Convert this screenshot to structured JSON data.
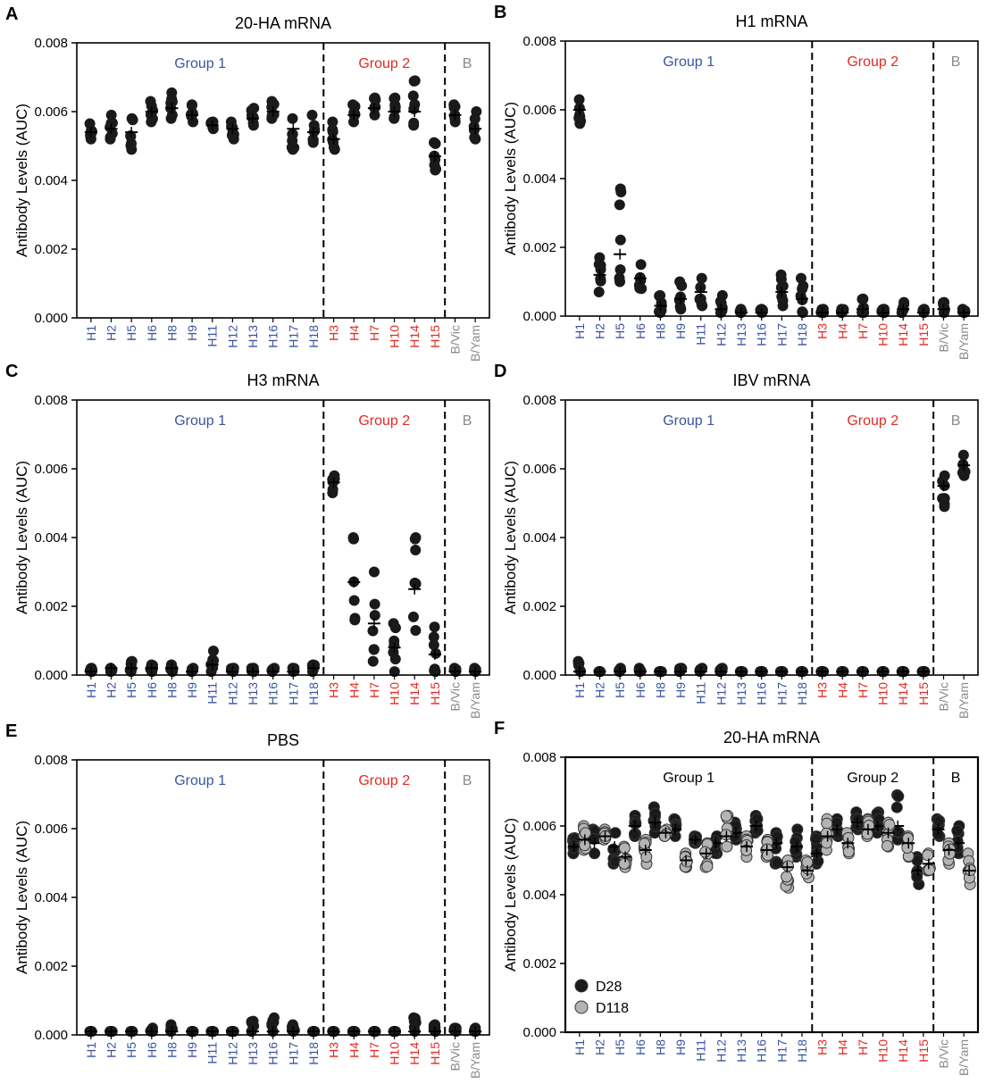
{
  "colors": {
    "group1": "#3a55a0",
    "group2": "#e32a22",
    "groupB": "#8a8a8a",
    "dot": "#1a1a1a",
    "dot_d118": "#b4b4b4",
    "axis": "#000000"
  },
  "chart_data": [
    {
      "panel": "A",
      "type": "scatter",
      "title": "20-HA mRNA",
      "ylabel": "Antibody Levels (AUC)",
      "ylim": [
        0,
        0.008
      ],
      "yticks": [
        "0.000",
        "0.002",
        "0.004",
        "0.006",
        "0.008"
      ],
      "categories": [
        "H1",
        "H2",
        "H5",
        "H6",
        "H8",
        "H9",
        "H11",
        "H12",
        "H13",
        "H16",
        "H17",
        "H18",
        "H3",
        "H4",
        "H7",
        "H10",
        "H14",
        "H15",
        "B/Vic",
        "B/Yam"
      ],
      "category_groups": [
        "g1",
        "g1",
        "g1",
        "g1",
        "g1",
        "g1",
        "g1",
        "g1",
        "g1",
        "g1",
        "g1",
        "g1",
        "g2",
        "g2",
        "g2",
        "g2",
        "g2",
        "g2",
        "b",
        "b"
      ],
      "group_labels": [
        "Group 1",
        "Group 2",
        "B"
      ],
      "legend": [],
      "series": [
        {
          "means": [
            0.0054,
            0.0055,
            0.0054,
            0.006,
            0.0061,
            0.0059,
            0.0056,
            0.0055,
            0.0058,
            0.006,
            0.0055,
            0.0054,
            0.0052,
            0.0059,
            0.0061,
            0.006,
            0.006,
            0.0047,
            0.0059,
            0.0055
          ],
          "max": [
            0.00565,
            0.0059,
            0.0058,
            0.0063,
            0.00655,
            0.0062,
            0.0057,
            0.0057,
            0.0061,
            0.0063,
            0.0058,
            0.0059,
            0.0057,
            0.0062,
            0.0064,
            0.0064,
            0.0069,
            0.0051,
            0.0062,
            0.006
          ],
          "min": [
            0.0052,
            0.0052,
            0.0049,
            0.0057,
            0.0058,
            0.0057,
            0.0055,
            0.0052,
            0.0056,
            0.0058,
            0.0049,
            0.0051,
            0.0049,
            0.0057,
            0.0059,
            0.0058,
            0.0056,
            0.0043,
            0.0057,
            0.0052
          ]
        }
      ]
    },
    {
      "panel": "B",
      "type": "scatter",
      "title": "H1 mRNA",
      "ylabel": "Antibody Levels (AUC)",
      "ylim": [
        0,
        0.008
      ],
      "yticks": [
        "0.000",
        "0.002",
        "0.004",
        "0.006",
        "0.008"
      ],
      "categories": [
        "H1",
        "H2",
        "H5",
        "H6",
        "H8",
        "H9",
        "H11",
        "H12",
        "H13",
        "H16",
        "H17",
        "H18",
        "H3",
        "H4",
        "H7",
        "H10",
        "H14",
        "H15",
        "B/Vic",
        "B/Yam"
      ],
      "category_groups": [
        "g1",
        "g1",
        "g1",
        "g1",
        "g1",
        "g1",
        "g1",
        "g1",
        "g1",
        "g1",
        "g1",
        "g1",
        "g2",
        "g2",
        "g2",
        "g2",
        "g2",
        "g2",
        "b",
        "b"
      ],
      "group_labels": [
        "Group 1",
        "Group 2",
        "B"
      ],
      "legend": [],
      "series": [
        {
          "means": [
            0.006,
            0.0012,
            0.0018,
            0.0011,
            0.0003,
            0.0005,
            0.0007,
            0.0002,
            0.0001,
            0.0001,
            0.0007,
            0.0005,
            0.0001,
            0.0001,
            0.0002,
            0.0001,
            0.0002,
            0.0001,
            0.0002,
            0.0001
          ],
          "max": [
            0.0063,
            0.0017,
            0.0037,
            0.0015,
            0.0006,
            0.001,
            0.0011,
            0.0006,
            0.0002,
            0.0002,
            0.0012,
            0.0011,
            0.0002,
            0.0002,
            0.0005,
            0.0002,
            0.0004,
            0.0002,
            0.0004,
            0.0002
          ],
          "min": [
            0.0056,
            0.0007,
            0.001,
            0.0008,
            0.0001,
            0.0002,
            0.0003,
            0.0001,
            0.0001,
            0.0001,
            0.0003,
            0.0001,
            0.0001,
            0.0001,
            0.0001,
            0.0001,
            0.0001,
            0.0001,
            0.0001,
            0.0001
          ]
        }
      ]
    },
    {
      "panel": "C",
      "type": "scatter",
      "title": "H3 mRNA",
      "ylabel": "Antibody Levels (AUC)",
      "ylim": [
        0,
        0.008
      ],
      "yticks": [
        "0.000",
        "0.002",
        "0.004",
        "0.006",
        "0.008"
      ],
      "categories": [
        "H1",
        "H2",
        "H5",
        "H6",
        "H8",
        "H9",
        "H11",
        "H12",
        "H13",
        "H16",
        "H17",
        "H18",
        "H3",
        "H4",
        "H7",
        "H10",
        "H14",
        "H15",
        "B/Vic",
        "B/Yam"
      ],
      "category_groups": [
        "g1",
        "g1",
        "g1",
        "g1",
        "g1",
        "g1",
        "g1",
        "g1",
        "g1",
        "g1",
        "g1",
        "g1",
        "g2",
        "g2",
        "g2",
        "g2",
        "g2",
        "g2",
        "b",
        "b"
      ],
      "group_labels": [
        "Group 1",
        "Group 2",
        "B"
      ],
      "legend": [],
      "series": [
        {
          "means": [
            0.0001,
            0.0002,
            0.0002,
            0.0002,
            0.0002,
            0.0001,
            0.0003,
            0.0001,
            0.0001,
            0.0001,
            0.0001,
            0.0002,
            0.0056,
            0.0027,
            0.0015,
            0.0008,
            0.0025,
            0.0006,
            0.0001,
            0.0001
          ],
          "max": [
            0.0002,
            0.0002,
            0.0004,
            0.0003,
            0.0003,
            0.0002,
            0.0007,
            0.0002,
            0.0002,
            0.0002,
            0.0002,
            0.0003,
            0.0058,
            0.004,
            0.003,
            0.0015,
            0.004,
            0.0014,
            0.0002,
            0.0002
          ],
          "min": [
            0.0001,
            0.0001,
            0.0001,
            0.0001,
            0.0001,
            0.0001,
            0.0001,
            0.0001,
            0.0001,
            0.0001,
            0.0001,
            0.0001,
            0.0053,
            0.0016,
            0.0004,
            0.0001,
            0.0013,
            0.0001,
            0.0001,
            0.0001
          ]
        }
      ]
    },
    {
      "panel": "D",
      "type": "scatter",
      "title": "IBV mRNA",
      "ylabel": "Antibody Levels (AUC)",
      "ylim": [
        0,
        0.008
      ],
      "yticks": [
        "0.000",
        "0.002",
        "0.004",
        "0.006",
        "0.008"
      ],
      "categories": [
        "H1",
        "H2",
        "H5",
        "H6",
        "H8",
        "H9",
        "H11",
        "H12",
        "H13",
        "H16",
        "H17",
        "H18",
        "H3",
        "H4",
        "H7",
        "H10",
        "H14",
        "H15",
        "B/Vic",
        "B/Yam"
      ],
      "category_groups": [
        "g1",
        "g1",
        "g1",
        "g1",
        "g1",
        "g1",
        "g1",
        "g1",
        "g1",
        "g1",
        "g1",
        "g1",
        "g2",
        "g2",
        "g2",
        "g2",
        "g2",
        "g2",
        "b",
        "b"
      ],
      "group_labels": [
        "Group 1",
        "Group 2",
        "B"
      ],
      "legend": [],
      "series": [
        {
          "means": [
            0.0001,
            0.0001,
            0.0001,
            0.0001,
            0.0001,
            0.0001,
            0.0001,
            0.0001,
            0.0001,
            0.0001,
            0.0001,
            0.0001,
            0.0001,
            0.0001,
            0.0001,
            0.0001,
            0.0001,
            0.0001,
            0.0055,
            0.0061
          ],
          "max": [
            0.0004,
            0.0001,
            0.0002,
            0.0002,
            0.0001,
            0.0002,
            0.0002,
            0.0002,
            0.0001,
            0.0001,
            0.0001,
            0.0001,
            0.0001,
            0.0001,
            0.0001,
            0.0001,
            0.0001,
            0.0001,
            0.0058,
            0.0064
          ],
          "min": [
            0.0001,
            0.0001,
            0.0001,
            0.0001,
            0.0001,
            0.0001,
            0.0001,
            0.0001,
            0.0001,
            0.0001,
            0.0001,
            0.0001,
            0.0001,
            0.0001,
            0.0001,
            0.0001,
            0.0001,
            0.0001,
            0.0049,
            0.0058
          ]
        }
      ]
    },
    {
      "panel": "E",
      "type": "scatter",
      "title": "PBS",
      "ylabel": "Antibody Levels (AUC)",
      "ylim": [
        0,
        0.008
      ],
      "yticks": [
        "0.000",
        "0.002",
        "0.004",
        "0.006",
        "0.008"
      ],
      "categories": [
        "H1",
        "H2",
        "H5",
        "H6",
        "H8",
        "H9",
        "H11",
        "H12",
        "H13",
        "H16",
        "H17",
        "H18",
        "H3",
        "H4",
        "H7",
        "H10",
        "H14",
        "H15",
        "B/Vic",
        "B/Yam"
      ],
      "category_groups": [
        "g1",
        "g1",
        "g1",
        "g1",
        "g1",
        "g1",
        "g1",
        "g1",
        "g1",
        "g1",
        "g1",
        "g1",
        "g2",
        "g2",
        "g2",
        "g2",
        "g2",
        "g2",
        "b",
        "b"
      ],
      "group_labels": [
        "Group 1",
        "Group 2",
        "B"
      ],
      "legend": [],
      "series": [
        {
          "means": [
            0.0001,
            0.0001,
            0.0001,
            0.0001,
            0.0001,
            0.0001,
            0.0001,
            0.0001,
            0.0001,
            0.0001,
            0.0001,
            0.0001,
            0.0001,
            0.0001,
            0.0001,
            0.0001,
            0.0001,
            0.0001,
            0.0001,
            0.0001
          ],
          "max": [
            0.0001,
            0.0001,
            0.0001,
            0.0002,
            0.0003,
            0.0001,
            0.0001,
            0.0001,
            0.0004,
            0.0005,
            0.0003,
            0.0001,
            0.0001,
            0.0001,
            0.0001,
            0.0001,
            0.0005,
            0.0003,
            0.0002,
            0.0002
          ],
          "min": [
            0.0001,
            0.0001,
            0.0001,
            0.0001,
            0.0001,
            0.0001,
            0.0001,
            0.0001,
            0.0001,
            0.0001,
            0.0001,
            0.0001,
            0.0001,
            0.0001,
            0.0001,
            0.0001,
            0.0001,
            0.0001,
            0.0001,
            0.0001
          ]
        }
      ]
    },
    {
      "panel": "F",
      "type": "scatter",
      "title": "20-HA mRNA",
      "ylabel": "Antibody Levels (AUC)",
      "ylim": [
        0,
        0.008
      ],
      "yticks": [
        "0.000",
        "0.002",
        "0.004",
        "0.006",
        "0.008"
      ],
      "categories": [
        "H1",
        "H2",
        "H5",
        "H6",
        "H8",
        "H9",
        "H11",
        "H12",
        "H13",
        "H16",
        "H17",
        "H18",
        "H3",
        "H4",
        "H7",
        "H10",
        "H14",
        "H15",
        "B/Vic",
        "B/Yam"
      ],
      "category_groups": [
        "g1",
        "g1",
        "g1",
        "g1",
        "g1",
        "g1",
        "g1",
        "g1",
        "g1",
        "g1",
        "g1",
        "g1",
        "g2",
        "g2",
        "g2",
        "g2",
        "g2",
        "g2",
        "b",
        "b"
      ],
      "group_labels": [
        "Group 1",
        "Group 2",
        "B"
      ],
      "legend": [
        "D28",
        "D118"
      ],
      "series": [
        {
          "name": "D28",
          "means": [
            0.0054,
            0.0055,
            0.0054,
            0.006,
            0.0061,
            0.0059,
            0.0056,
            0.0055,
            0.0058,
            0.006,
            0.0055,
            0.0054,
            0.0052,
            0.0059,
            0.0061,
            0.006,
            0.006,
            0.0047,
            0.0059,
            0.0055
          ],
          "max": [
            0.00565,
            0.0059,
            0.0058,
            0.0063,
            0.00655,
            0.0062,
            0.0057,
            0.0057,
            0.0061,
            0.0063,
            0.0058,
            0.0059,
            0.0057,
            0.0062,
            0.0064,
            0.0064,
            0.0069,
            0.0051,
            0.0062,
            0.006
          ],
          "min": [
            0.0052,
            0.0052,
            0.0049,
            0.0057,
            0.0058,
            0.0057,
            0.0055,
            0.0052,
            0.0056,
            0.0058,
            0.0049,
            0.0051,
            0.0049,
            0.0057,
            0.0059,
            0.0058,
            0.0056,
            0.0043,
            0.0057,
            0.0052
          ]
        },
        {
          "name": "D118",
          "means": [
            0.0056,
            0.0057,
            0.0051,
            0.0053,
            0.0058,
            0.005,
            0.0052,
            0.0057,
            0.0054,
            0.0053,
            0.0048,
            0.0047,
            0.0057,
            0.0055,
            0.0059,
            0.0058,
            0.0055,
            0.0049,
            0.0053,
            0.0047
          ],
          "max": [
            0.006,
            0.0059,
            0.0054,
            0.0056,
            0.0059,
            0.0052,
            0.0055,
            0.0063,
            0.0057,
            0.0056,
            0.005,
            0.005,
            0.0062,
            0.0058,
            0.0062,
            0.0061,
            0.0057,
            0.0052,
            0.0055,
            0.0052
          ],
          "min": [
            0.0053,
            0.0056,
            0.0048,
            0.0049,
            0.0057,
            0.0048,
            0.0048,
            0.0054,
            0.0051,
            0.0051,
            0.0042,
            0.0045,
            0.0053,
            0.0052,
            0.0057,
            0.0054,
            0.0051,
            0.0047,
            0.0049,
            0.0043
          ]
        }
      ]
    }
  ]
}
